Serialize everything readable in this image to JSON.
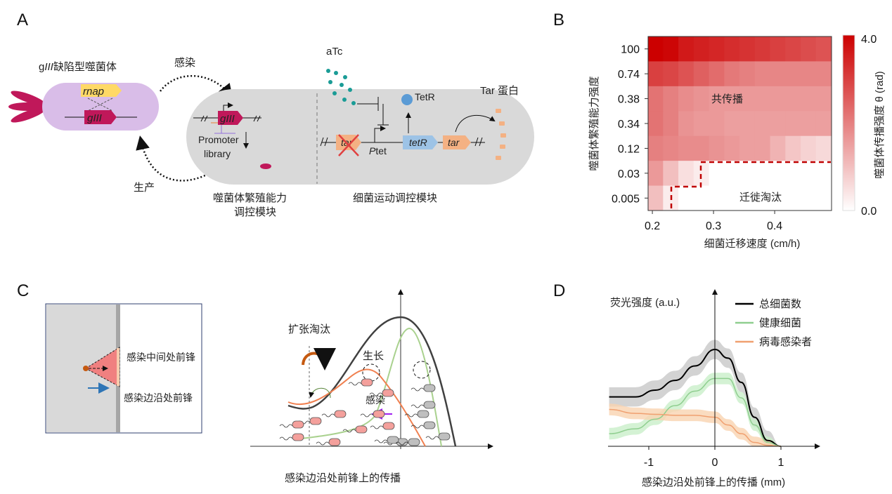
{
  "panels": {
    "a": "A",
    "b": "B",
    "c": "C",
    "d": "D"
  },
  "panel_a": {
    "phage_title_prefix": "g",
    "phage_title_italic": "III",
    "phage_title_suffix": "缺陷型噬菌体",
    "rnap": "rnap",
    "giii": "gIII",
    "infect": "感染",
    "produce": "生产",
    "promoter_line1": "Promoter",
    "promoter_line2": "library",
    "atc": "aTc",
    "tetr_protein": "TetR",
    "tar_protein": "Tar 蛋白",
    "tar": "tar",
    "ptet_p": "P",
    "ptet_rest": "tet",
    "tetr_gene": "tetR",
    "module1_line1": "噬菌体繁殖能力",
    "module1_line2": "调控模块",
    "module2": "细菌运动调控模块",
    "colors": {
      "phage": "#d9bde8",
      "cell": "#d9d9d9",
      "giii": "#c0185a",
      "rnap": "#ffd966",
      "tar": "#f4b183",
      "tetr": "#9dc3e6",
      "atc": "#1a9c96",
      "tetr_dot": "#5b9bd5"
    }
  },
  "chart_data": [
    {
      "type": "heatmap",
      "xlabel": "细菌迁移速度 (cm/h)",
      "ylabel": "噬菌体繁殖能力强度",
      "x_ticks": [
        "0.2",
        "0.3",
        "0.4"
      ],
      "x_tick_values": [
        0.2,
        0.3,
        0.4
      ],
      "xlim": [
        0.193,
        0.493
      ],
      "y_categories": [
        "100",
        "0.74",
        "0.38",
        "0.34",
        "0.12",
        "0.03",
        "0.005"
      ],
      "x": [
        0.205,
        0.23,
        0.255,
        0.28,
        0.305,
        0.33,
        0.355,
        0.38,
        0.405,
        0.43,
        0.455,
        0.48
      ],
      "values": [
        [
          4.0,
          3.9,
          3.6,
          3.5,
          3.4,
          3.3,
          3.2,
          3.1,
          3.0,
          2.9,
          2.8,
          2.7
        ],
        [
          3.0,
          2.9,
          2.7,
          2.5,
          2.3,
          2.1,
          2.0,
          1.9,
          1.9,
          1.9,
          1.9,
          1.9
        ],
        [
          2.2,
          2.0,
          1.8,
          1.7,
          1.6,
          1.6,
          1.6,
          1.6,
          1.6,
          1.6,
          1.6,
          1.6
        ],
        [
          2.2,
          2.0,
          1.7,
          1.6,
          1.6,
          1.5,
          1.5,
          1.5,
          1.5,
          1.5,
          1.5,
          1.5
        ],
        [
          2.0,
          1.9,
          1.8,
          1.8,
          1.7,
          1.6,
          1.5,
          1.5,
          1.2,
          0.9,
          0.7,
          0.6
        ],
        [
          1.6,
          1.0,
          0.5,
          0.3,
          0,
          0,
          0,
          0,
          0,
          0,
          0,
          0
        ],
        [
          1.0,
          0.3,
          0,
          0,
          0,
          0,
          0,
          0,
          0,
          0,
          0,
          0
        ]
      ],
      "colorbar_label": "噬菌体传播强度 θ (rad)",
      "colorbar_range": [
        0.0,
        4.0
      ],
      "colorbar_ticks": [
        "4.0",
        "0.0"
      ],
      "color_max": "#cc0000",
      "color_min": "#ffffff",
      "annotation_cospread": "共传播",
      "annotation_elimination": "迁徙淘汰",
      "boundary_color": "#c00000"
    },
    {
      "type": "line",
      "ylabel": "荧光强度 (a.u.)",
      "xlabel": "感染边沿处前锋上的传播 (mm)",
      "x_ticks": [
        "-1",
        "0",
        "1"
      ],
      "x_tick_values": [
        -1,
        0,
        1
      ],
      "xlim": [
        -1.62,
        1.6
      ],
      "ylim": [
        0,
        1.55
      ],
      "legend_position": "top-right",
      "x": [
        -1.6,
        -1.2,
        -0.9,
        -0.6,
        -0.3,
        0,
        0.2,
        0.4,
        0.6,
        0.8,
        1.0
      ],
      "series": [
        {
          "name": "总细菌数",
          "color": "#000000",
          "band_color": "#c8c8c8",
          "band": 0.1,
          "values": [
            0.51,
            0.51,
            0.58,
            0.68,
            0.83,
            1.0,
            0.91,
            0.66,
            0.3,
            0.06,
            0
          ]
        },
        {
          "name": "健康细菌",
          "color": "#8fce8f",
          "band_color": "#c9efc9",
          "band": 0.06,
          "values": [
            0.13,
            0.18,
            0.28,
            0.42,
            0.57,
            0.7,
            0.7,
            0.5,
            0.22,
            0.04,
            0
          ]
        },
        {
          "name": "病毒感染者",
          "color": "#f0a070",
          "band_color": "#f9d3b0",
          "band": 0.06,
          "values": [
            0.38,
            0.34,
            0.33,
            0.32,
            0.32,
            0.3,
            0.22,
            0.13,
            0.04,
            0.01,
            0
          ]
        }
      ]
    }
  ],
  "panel_c": {
    "mid_front": "感染中间处前锋",
    "edge_front": "感染边沿处前锋",
    "expansion_elimination": "扩张淘汰",
    "growth": "生长",
    "infect": "感染",
    "caption": "感染边沿处前锋上的传播",
    "colors": {
      "total": "#404040",
      "healthy": "#a9d18e",
      "infected": "#f08050",
      "edge_arrow": "#2e75b6",
      "infect_arrow": "#a020f0"
    }
  }
}
